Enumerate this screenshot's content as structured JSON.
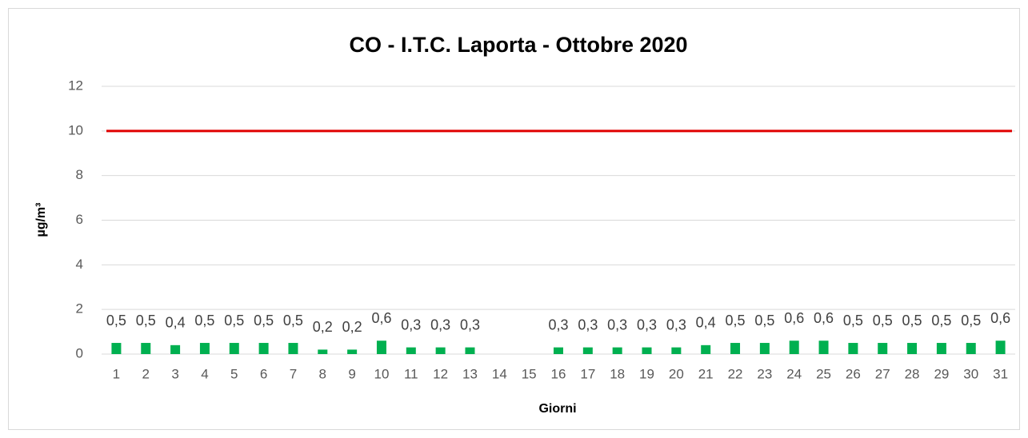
{
  "chart_data": {
    "type": "bar",
    "title": "CO - I.T.C. Laporta - Ottobre 2020",
    "x_label": "Giorni",
    "y_label": "µg/m³",
    "categories": [
      "1",
      "2",
      "3",
      "4",
      "5",
      "6",
      "7",
      "8",
      "9",
      "10",
      "11",
      "12",
      "13",
      "14",
      "15",
      "16",
      "17",
      "18",
      "19",
      "20",
      "21",
      "22",
      "23",
      "24",
      "25",
      "26",
      "27",
      "28",
      "29",
      "30",
      "31"
    ],
    "values": [
      0.5,
      0.5,
      0.4,
      0.5,
      0.5,
      0.5,
      0.5,
      0.2,
      0.2,
      0.6,
      0.3,
      0.3,
      0.3,
      null,
      null,
      0.3,
      0.3,
      0.3,
      0.3,
      0.3,
      0.4,
      0.5,
      0.5,
      0.6,
      0.6,
      0.5,
      0.5,
      0.5,
      0.5,
      0.5,
      0.6
    ],
    "value_labels": [
      "0,5",
      "0,5",
      "0,4",
      "0,5",
      "0,5",
      "0,5",
      "0,5",
      "0,2",
      "0,2",
      "0,6",
      "0,3",
      "0,3",
      "0,3",
      null,
      null,
      "0,3",
      "0,3",
      "0,3",
      "0,3",
      "0,3",
      "0,4",
      "0,5",
      "0,5",
      "0,6",
      "0,6",
      "0,5",
      "0,5",
      "0,5",
      "0,5",
      "0,5",
      "0,6"
    ],
    "color": "#00b050",
    "threshold": {
      "value": 10,
      "color": "#e00000"
    },
    "ylim": [
      0,
      12
    ],
    "yticks": [
      0,
      2,
      4,
      6,
      8,
      10,
      12
    ],
    "grid": true
  }
}
